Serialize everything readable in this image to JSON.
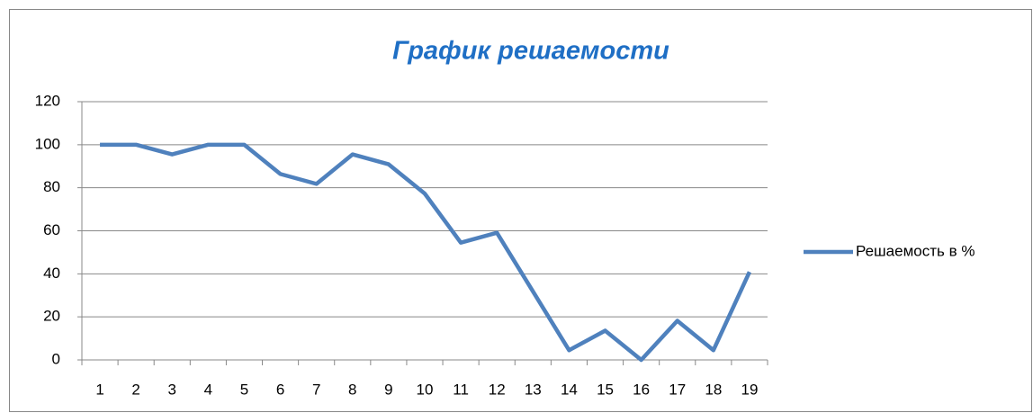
{
  "chart_data": {
    "type": "line",
    "title": "График решаемости",
    "categories": [
      "1",
      "2",
      "3",
      "4",
      "5",
      "6",
      "7",
      "8",
      "9",
      "10",
      "11",
      "12",
      "13",
      "14",
      "15",
      "16",
      "17",
      "18",
      "19"
    ],
    "series": [
      {
        "name": "Решаемость в %",
        "color": "#4f81bd",
        "values": [
          100,
          100,
          95.5,
          100,
          100,
          86.4,
          81.8,
          95.5,
          90.9,
          77.3,
          54.5,
          59.1,
          31.8,
          4.5,
          13.6,
          0,
          18.2,
          4.5,
          40.9
        ]
      }
    ],
    "ylim": [
      0,
      120
    ],
    "yticks": [
      0,
      20,
      40,
      60,
      80,
      100,
      120
    ],
    "grid": true,
    "legend": "right"
  }
}
